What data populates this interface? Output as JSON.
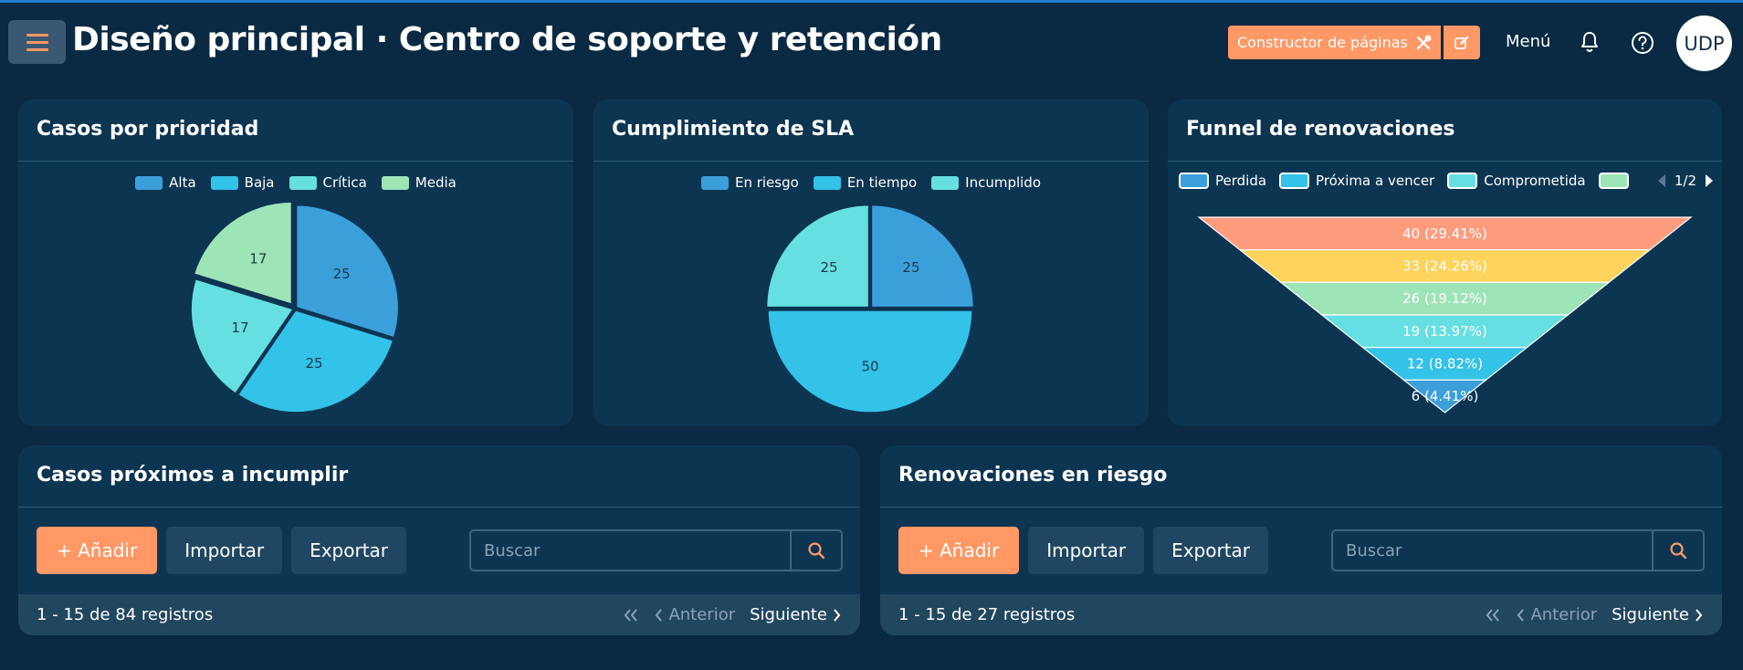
{
  "header": {
    "title": "Diseño principal · Centro de soporte y retención",
    "builder_label": "Constructor de páginas",
    "menu_label": "Menú",
    "avatar_initials": "UDP"
  },
  "cards": {
    "priority": {
      "title": "Casos por prioridad",
      "legend": [
        "Alta",
        "Baja",
        "Crítica",
        "Media"
      ]
    },
    "sla": {
      "title": "Cumplimiento de SLA",
      "legend": [
        "En riesgo",
        "En tiempo",
        "Incumplido"
      ]
    },
    "funnel": {
      "title": "Funnel de renovaciones",
      "legend": [
        "Perdida",
        "Próxima a vencer",
        "Comprometida",
        ""
      ],
      "pager": "1/2"
    }
  },
  "chart_data": [
    {
      "type": "pie",
      "title": "Casos por prioridad",
      "categories": [
        "Alta",
        "Baja",
        "Crítica",
        "Media"
      ],
      "values": [
        25,
        25,
        17,
        17
      ],
      "colors": [
        "#3b9fda",
        "#33c2e8",
        "#66dfe2",
        "#9de4b6"
      ]
    },
    {
      "type": "pie",
      "title": "Cumplimiento de SLA",
      "categories": [
        "En riesgo",
        "En tiempo",
        "Incumplido"
      ],
      "values": [
        25,
        50,
        25
      ],
      "colors": [
        "#3b9fda",
        "#33c2e8",
        "#66dfe2"
      ]
    },
    {
      "type": "funnel",
      "title": "Funnel de renovaciones",
      "values": [
        40,
        33,
        26,
        19,
        12,
        6
      ],
      "labels": [
        "40 (29.41%)",
        "33 (24.26%)",
        "26 (19.12%)",
        "19 (13.97%)",
        "12 (8.82%)",
        "6 (4.41%)"
      ],
      "colors": [
        "#ff9c7e",
        "#fdd35c",
        "#9de4b6",
        "#66dfe2",
        "#33c2e8",
        "#3b9fda"
      ]
    }
  ],
  "tables": {
    "left": {
      "title": "Casos próximos a incumplir",
      "add_label": "+ Añadir",
      "import_label": "Importar",
      "export_label": "Exportar",
      "search_placeholder": "Buscar",
      "records": "1 - 15 de 84 registros",
      "prev_label": "Anterior",
      "next_label": "Siguiente"
    },
    "right": {
      "title": "Renovaciones en riesgo",
      "add_label": "+ Añadir",
      "import_label": "Importar",
      "export_label": "Exportar",
      "search_placeholder": "Buscar",
      "records": "1 - 15 de 27 registros",
      "prev_label": "Anterior",
      "next_label": "Siguiente"
    }
  },
  "colors": {
    "accent": "#ff9865",
    "background": "#092a42",
    "card": "#0c3552"
  }
}
